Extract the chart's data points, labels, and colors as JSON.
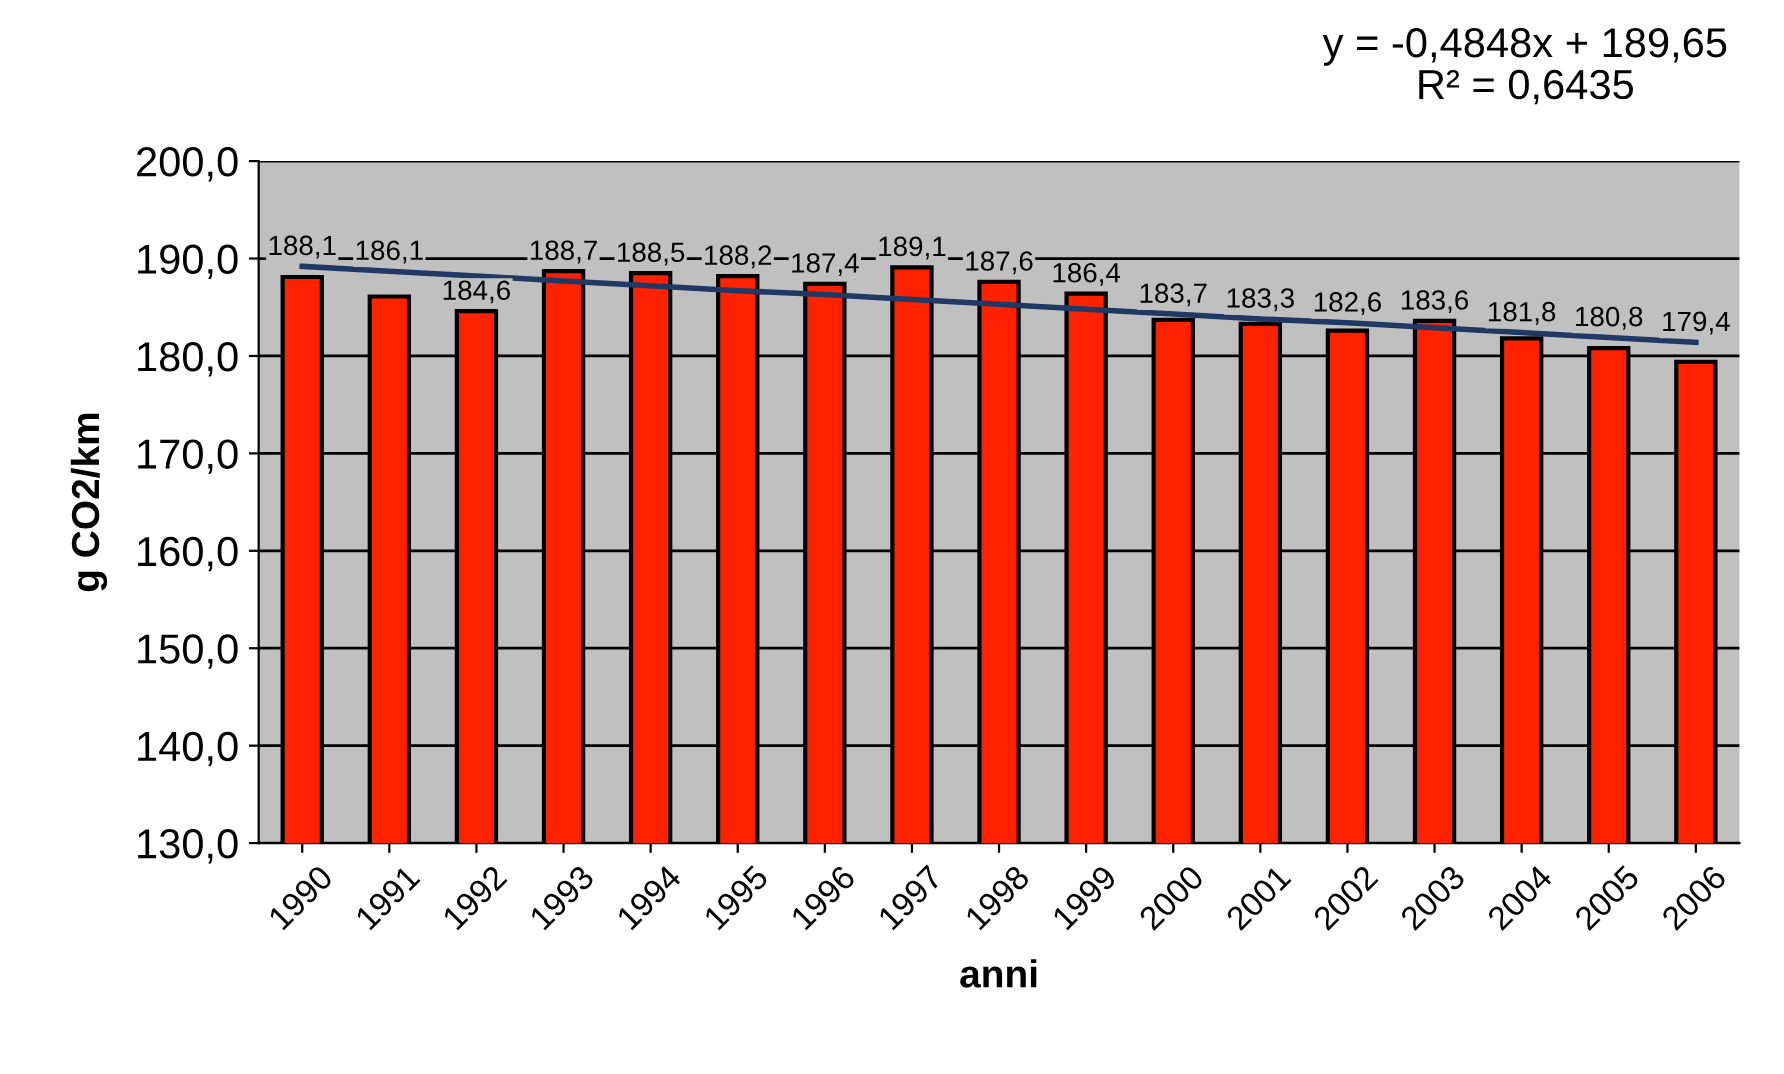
{
  "chart_data": {
    "type": "bar",
    "xlabel": "anni",
    "ylabel": "g CO2/km",
    "categories": [
      "1990",
      "1991",
      "1992",
      "1993",
      "1994",
      "1995",
      "1996",
      "1997",
      "1998",
      "1999",
      "2000",
      "2001",
      "2002",
      "2003",
      "2004",
      "2005",
      "2006"
    ],
    "series": [
      {
        "color": "#ff2200",
        "values": [
          188.1,
          186.1,
          184.6,
          188.7,
          188.5,
          188.2,
          187.4,
          189.1,
          187.6,
          186.4,
          183.7,
          183.3,
          182.6,
          183.6,
          181.8,
          180.8,
          179.4
        ],
        "value_labels": [
          "188,1",
          "186,1",
          "184,6",
          "188,7",
          "188,5",
          "188,2",
          "187,4",
          "189,1",
          "187,6",
          "186,4",
          "183,7",
          "183,3",
          "182,6",
          "183,6",
          "181,8",
          "180,8",
          "179,4"
        ]
      },
      {
        "type": "line",
        "color": "#1f3864",
        "values": [
          189.2,
          188.7,
          188.2,
          187.7,
          187.2,
          186.7,
          186.3,
          185.8,
          185.3,
          184.8,
          184.3,
          183.8,
          183.4,
          182.9,
          182.4,
          181.9,
          181.4
        ]
      }
    ],
    "ylim": [
      130,
      200
    ],
    "yticks": [
      {
        "value": 130,
        "label": "130,0"
      },
      {
        "value": 140,
        "label": "140,0"
      },
      {
        "value": 150,
        "label": "150,0"
      },
      {
        "value": 160,
        "label": "160,0"
      },
      {
        "value": 170,
        "label": "170,0"
      },
      {
        "value": 180,
        "label": "180,0"
      },
      {
        "value": 190,
        "label": "190,0"
      },
      {
        "value": 200,
        "label": "200,0"
      }
    ],
    "grid": "y",
    "annotations": [
      "y = -0,4848x + 189,65\nR² = 0,6435"
    ]
  }
}
